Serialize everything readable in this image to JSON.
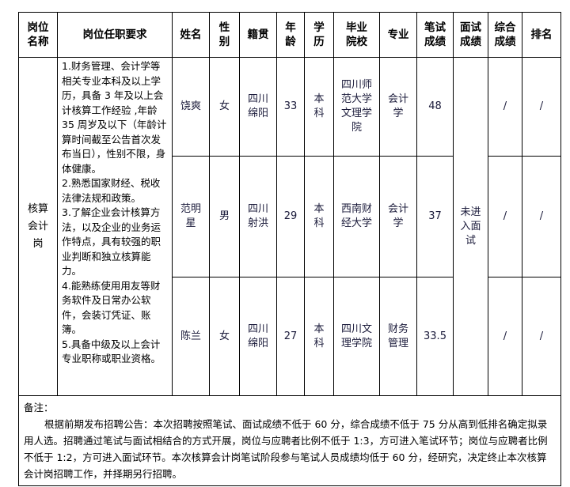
{
  "headers": [
    "岗位\n名称",
    "岗位任职要求",
    "姓名",
    "性\n别",
    "籍贯",
    "年\n龄",
    "学\n历",
    "毕业\n院校",
    "专业",
    "笔试\n成绩",
    "面试\n成绩",
    "综合\n成绩",
    "排名"
  ],
  "position": {
    "name": "核算\n会计\n岗",
    "requirements": "1.财务管理、会计学等相关专业本科及以上学历，具备 3 年及以上会计核算工作经验 ,年龄 35 周岁及以下（年龄计算时间截至公告首次发布当日），性别不限，身体健康。\n2.熟悉国家财经、税收法律法规和政策。\n3.了解企业会计核算方法，以及企业的业务运作特点，具有较强的职业判断和独立核算能力。\n4.能熟练使用用友等财务软件及日常办公软件，会装订凭证、账簿。\n5.具备中级及以上会计专业职称或职业资格。",
    "interview_score": "未进\n入面\n试"
  },
  "candidates": [
    {
      "name": "饶爽",
      "gender": "女",
      "origin": "四川\n绵阳",
      "age": "33",
      "education": "本\n科",
      "school": "四川师\n范大学\n文理学\n院",
      "major": "会计\n学",
      "written": "48",
      "total": "/",
      "rank": "/"
    },
    {
      "name": "范明\n星",
      "gender": "男",
      "origin": "四川\n射洪",
      "age": "29",
      "education": "本\n科",
      "school": "西南财\n经大学",
      "major": "会计\n学",
      "written": "37",
      "total": "/",
      "rank": "/"
    },
    {
      "name": "陈兰",
      "gender": "女",
      "origin": "四川\n绵阳",
      "age": "27",
      "education": "本\n科",
      "school": "四川文\n理学院",
      "major": "财务\n管理",
      "written": "33.5",
      "total": "/",
      "rank": "/"
    }
  ],
  "remarks": {
    "label": "备注：",
    "text": "根据前期发布招聘公告：本次招聘按照笔试、面试成绩不低于 60 分，综合成绩不低于 75 分从高到低排名确定拟录用人选。招聘通过笔试与面试相结合的方式开展，岗位与应聘者比例不低于 1:3，方可进入笔试环节；岗位与应聘者比例不低于 1:2，方可进入面试环节。本次核算会计岗笔试阶段参与笔试人员成绩均低于 60 分，经研究，决定终止本次核算会计岗招聘工作，并择期另行招聘。"
  }
}
